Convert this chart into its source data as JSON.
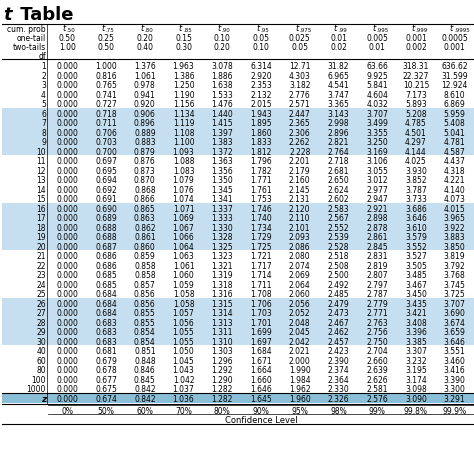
{
  "title_italic": "t",
  "title_rest": " Table",
  "col_headers_row0": [
    "cum. prob",
    ".50",
    ".75",
    ".80",
    ".85",
    ".90",
    ".95",
    ".975",
    ".99",
    ".995",
    ".999",
    ".9995"
  ],
  "col_headers_row1": [
    "one-tail",
    "0.50",
    "0.25",
    "0.20",
    "0.15",
    "0.10",
    "0.05",
    "0.025",
    "0.01",
    "0.005",
    "0.001",
    "0.0005"
  ],
  "col_headers_row2": [
    "two-tails",
    "1.00",
    "0.50",
    "0.40",
    "0.30",
    "0.20",
    "0.10",
    "0.05",
    "0.02",
    "0.01",
    "0.002",
    "0.001"
  ],
  "df_label": "df",
  "data_rows": [
    [
      1,
      "0.000",
      "1.000",
      "1.376",
      "1.963",
      "3.078",
      "6.314",
      "12.71",
      "31.82",
      "63.66",
      "318.31",
      "636.62"
    ],
    [
      2,
      "0.000",
      "0.816",
      "1.061",
      "1.386",
      "1.886",
      "2.920",
      "4.303",
      "6.965",
      "9.925",
      "22.327",
      "31.599"
    ],
    [
      3,
      "0.000",
      "0.765",
      "0.978",
      "1.250",
      "1.638",
      "2.353",
      "3.182",
      "4.541",
      "5.841",
      "10.215",
      "12.924"
    ],
    [
      4,
      "0.000",
      "0.741",
      "0.941",
      "1.190",
      "1.533",
      "2.132",
      "2.776",
      "3.747",
      "4.604",
      "7.173",
      "8.610"
    ],
    [
      5,
      "0.000",
      "0.727",
      "0.920",
      "1.156",
      "1.476",
      "2.015",
      "2.571",
      "3.365",
      "4.032",
      "5.893",
      "6.869"
    ],
    [
      6,
      "0.000",
      "0.718",
      "0.906",
      "1.134",
      "1.440",
      "1.943",
      "2.447",
      "3.143",
      "3.707",
      "5.208",
      "5.959"
    ],
    [
      7,
      "0.000",
      "0.711",
      "0.896",
      "1.119",
      "1.415",
      "1.895",
      "2.365",
      "2.998",
      "3.499",
      "4.785",
      "5.408"
    ],
    [
      8,
      "0.000",
      "0.706",
      "0.889",
      "1.108",
      "1.397",
      "1.860",
      "2.306",
      "2.896",
      "3.355",
      "4.501",
      "5.041"
    ],
    [
      9,
      "0.000",
      "0.703",
      "0.883",
      "1.100",
      "1.383",
      "1.833",
      "2.262",
      "2.821",
      "3.250",
      "4.297",
      "4.781"
    ],
    [
      10,
      "0.000",
      "0.700",
      "0.879",
      "1.093",
      "1.372",
      "1.812",
      "2.228",
      "2.764",
      "3.169",
      "4.144",
      "4.587"
    ],
    [
      11,
      "0.000",
      "0.697",
      "0.876",
      "1.088",
      "1.363",
      "1.796",
      "2.201",
      "2.718",
      "3.106",
      "4.025",
      "4.437"
    ],
    [
      12,
      "0.000",
      "0.695",
      "0.873",
      "1.083",
      "1.356",
      "1.782",
      "2.179",
      "2.681",
      "3.055",
      "3.930",
      "4.318"
    ],
    [
      13,
      "0.000",
      "0.694",
      "0.870",
      "1.079",
      "1.350",
      "1.771",
      "2.160",
      "2.650",
      "3.012",
      "3.852",
      "4.221"
    ],
    [
      14,
      "0.000",
      "0.692",
      "0.868",
      "1.076",
      "1.345",
      "1.761",
      "2.145",
      "2.624",
      "2.977",
      "3.787",
      "4.140"
    ],
    [
      15,
      "0.000",
      "0.691",
      "0.866",
      "1.074",
      "1.341",
      "1.753",
      "2.131",
      "2.602",
      "2.947",
      "3.733",
      "4.073"
    ],
    [
      16,
      "0.000",
      "0.690",
      "0.865",
      "1.071",
      "1.337",
      "1.746",
      "2.120",
      "2.583",
      "2.921",
      "3.686",
      "4.015"
    ],
    [
      17,
      "0.000",
      "0.689",
      "0.863",
      "1.069",
      "1.333",
      "1.740",
      "2.110",
      "2.567",
      "2.898",
      "3.646",
      "3.965"
    ],
    [
      18,
      "0.000",
      "0.688",
      "0.862",
      "1.067",
      "1.330",
      "1.734",
      "2.101",
      "2.552",
      "2.878",
      "3.610",
      "3.922"
    ],
    [
      19,
      "0.000",
      "0.688",
      "0.861",
      "1.066",
      "1.328",
      "1.729",
      "2.093",
      "2.539",
      "2.861",
      "3.579",
      "3.883"
    ],
    [
      20,
      "0.000",
      "0.687",
      "0.860",
      "1.064",
      "1.325",
      "1.725",
      "2.086",
      "2.528",
      "2.845",
      "3.552",
      "3.850"
    ],
    [
      21,
      "0.000",
      "0.686",
      "0.859",
      "1.063",
      "1.323",
      "1.721",
      "2.080",
      "2.518",
      "2.831",
      "3.527",
      "3.819"
    ],
    [
      22,
      "0.000",
      "0.686",
      "0.858",
      "1.061",
      "1.321",
      "1.717",
      "2.074",
      "2.508",
      "2.819",
      "3.505",
      "3.792"
    ],
    [
      23,
      "0.000",
      "0.685",
      "0.858",
      "1.060",
      "1.319",
      "1.714",
      "2.069",
      "2.500",
      "2.807",
      "3.485",
      "3.768"
    ],
    [
      24,
      "0.000",
      "0.685",
      "0.857",
      "1.059",
      "1.318",
      "1.711",
      "2.064",
      "2.492",
      "2.797",
      "3.467",
      "3.745"
    ],
    [
      25,
      "0.000",
      "0.684",
      "0.856",
      "1.058",
      "1.316",
      "1.708",
      "2.060",
      "2.485",
      "2.787",
      "3.450",
      "3.725"
    ],
    [
      26,
      "0.000",
      "0.684",
      "0.856",
      "1.058",
      "1.315",
      "1.706",
      "2.056",
      "2.479",
      "2.779",
      "3.435",
      "3.707"
    ],
    [
      27,
      "0.000",
      "0.684",
      "0.855",
      "1.057",
      "1.314",
      "1.703",
      "2.052",
      "2.473",
      "2.771",
      "3.421",
      "3.690"
    ],
    [
      28,
      "0.000",
      "0.683",
      "0.855",
      "1.056",
      "1.313",
      "1.701",
      "2.048",
      "2.467",
      "2.763",
      "3.408",
      "3.674"
    ],
    [
      29,
      "0.000",
      "0.683",
      "0.854",
      "1.055",
      "1.311",
      "1.699",
      "2.045",
      "2.462",
      "2.756",
      "3.396",
      "3.659"
    ],
    [
      30,
      "0.000",
      "0.683",
      "0.854",
      "1.055",
      "1.310",
      "1.697",
      "2.042",
      "2.457",
      "2.750",
      "3.385",
      "3.646"
    ],
    [
      40,
      "0.000",
      "0.681",
      "0.851",
      "1.050",
      "1.303",
      "1.684",
      "2.021",
      "2.423",
      "2.704",
      "3.307",
      "3.551"
    ],
    [
      60,
      "0.000",
      "0.679",
      "0.848",
      "1.045",
      "1.296",
      "1.671",
      "2.000",
      "2.390",
      "2.660",
      "3.232",
      "3.460"
    ],
    [
      80,
      "0.000",
      "0.678",
      "0.846",
      "1.043",
      "1.292",
      "1.664",
      "1.990",
      "2.374",
      "2.639",
      "3.195",
      "3.416"
    ],
    [
      100,
      "0.000",
      "0.677",
      "0.845",
      "1.042",
      "1.290",
      "1.660",
      "1.984",
      "2.364",
      "2.626",
      "3.174",
      "3.390"
    ],
    [
      1000,
      "0.000",
      "0.675",
      "0.842",
      "1.037",
      "1.282",
      "1.646",
      "1.962",
      "2.330",
      "2.581",
      "3.098",
      "3.300"
    ]
  ],
  "z_row": [
    "z",
    "0.000",
    "0.674",
    "0.842",
    "1.036",
    "1.282",
    "1.645",
    "1.960",
    "2.326",
    "2.576",
    "3.090",
    "3.291"
  ],
  "confidence_pct": [
    "0%",
    "50%",
    "60%",
    "70%",
    "80%",
    "90%",
    "95%",
    "98%",
    "99%",
    "99.8%",
    "99.9%"
  ],
  "confidence_label": "Confidence Level",
  "blue_rows": [
    6,
    7,
    8,
    9,
    10,
    16,
    17,
    18,
    19,
    20,
    26,
    27,
    28,
    29,
    30
  ],
  "blue_color": "#c6dff0",
  "z_color": "#8bbfd8",
  "fig_width": 4.74,
  "fig_height": 4.6,
  "dpi": 100
}
